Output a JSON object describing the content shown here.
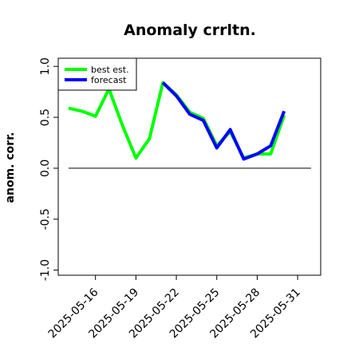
{
  "chart_data": {
    "type": "line",
    "title": "Anomaly crrltn.",
    "xlabel": "",
    "ylabel": "anom. corr.",
    "x_tick_labels": [
      "2025-05-16",
      "2025-05-19",
      "2025-05-22",
      "2025-05-25",
      "2025-05-28",
      "2025-05-31"
    ],
    "highlighted_tick": "2025-05-22",
    "highlight_color": "#008000",
    "y_ticks": [
      "-1.0",
      "-0.5",
      "0.0",
      "0.5",
      "1.0"
    ],
    "ylim": [
      -1.05,
      1.08
    ],
    "xlim": [
      "2025-05-13",
      "2025-06-01"
    ],
    "zero_line": true,
    "grid": false,
    "legend_position": "top-left",
    "series": [
      {
        "name": "best est.",
        "color": "#00ff00",
        "points": [
          [
            "2025-05-14",
            0.59
          ],
          [
            "2025-05-15",
            0.56
          ],
          [
            "2025-05-16",
            0.51
          ],
          [
            "2025-05-17",
            0.78
          ],
          [
            "2025-05-18",
            0.42
          ],
          [
            "2025-05-19",
            0.1
          ],
          [
            "2025-05-20",
            0.29
          ],
          [
            "2025-05-21",
            0.84
          ],
          [
            "2025-05-22",
            0.72
          ],
          [
            "2025-05-23",
            0.55
          ],
          [
            "2025-05-24",
            0.49
          ],
          [
            "2025-05-25",
            0.22
          ],
          [
            "2025-05-26",
            0.36
          ],
          [
            "2025-05-27",
            0.1
          ],
          [
            "2025-05-28",
            0.14
          ],
          [
            "2025-05-29",
            0.14
          ],
          [
            "2025-05-30",
            0.52
          ]
        ]
      },
      {
        "name": "forecast",
        "color": "#0000ff",
        "points": [
          [
            "2025-05-21",
            0.84
          ],
          [
            "2025-05-22",
            0.71
          ],
          [
            "2025-05-23",
            0.53
          ],
          [
            "2025-05-24",
            0.47
          ],
          [
            "2025-05-25",
            0.2
          ],
          [
            "2025-05-26",
            0.38
          ],
          [
            "2025-05-27",
            0.09
          ],
          [
            "2025-05-28",
            0.14
          ],
          [
            "2025-05-29",
            0.22
          ],
          [
            "2025-05-30",
            0.56
          ]
        ]
      }
    ]
  }
}
